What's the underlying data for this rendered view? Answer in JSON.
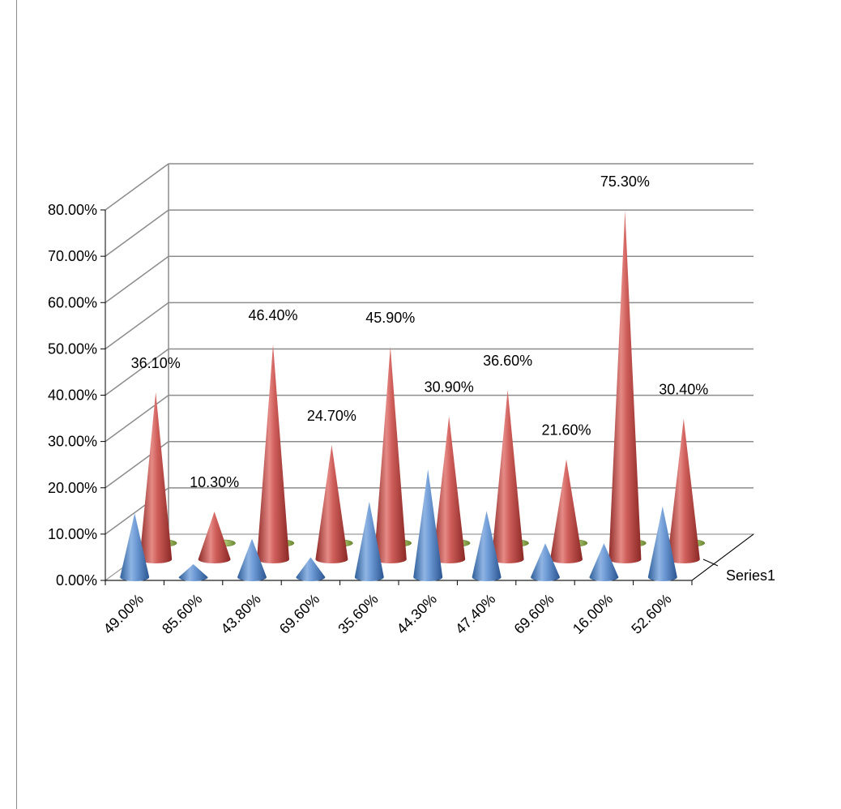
{
  "chart_data": {
    "type": "bar",
    "subtype": "3d-cone",
    "categories": [
      "49.00%",
      "85.60%",
      "43.80%",
      "69.60%",
      "35.60%",
      "44.30%",
      "47.40%",
      "69.60%",
      "16.00%",
      "52.60%"
    ],
    "y_tick_labels": [
      "0.00%",
      "10.00%",
      "20.00%",
      "30.00%",
      "40.00%",
      "50.00%",
      "60.00%",
      "70.00%",
      "80.00%"
    ],
    "ylim": [
      0,
      80
    ],
    "series": [
      {
        "name": "Series1",
        "color": "#4f81bd",
        "values": [
          14.5,
          3.5,
          9.0,
          5.0,
          17.0,
          24.0,
          15.0,
          8.0,
          8.0,
          16.0
        ],
        "data_labels": [
          "",
          "",
          "",
          "",
          "",
          "",
          "",
          "",
          "",
          ""
        ]
      },
      {
        "name": "",
        "color": "#c0504d",
        "values": [
          36.1,
          10.3,
          46.4,
          24.7,
          45.9,
          30.9,
          36.6,
          21.6,
          75.3,
          30.4
        ],
        "data_labels": [
          "36.10%",
          "10.30%",
          "46.40%",
          "24.70%",
          "45.90%",
          "30.90%",
          "36.60%",
          "21.60%",
          "75.30%",
          "30.40%"
        ]
      },
      {
        "name": "",
        "color": "#9bbb59",
        "values": [
          0,
          0,
          0,
          0,
          0,
          0,
          0,
          0,
          0,
          0
        ],
        "data_labels": [
          "",
          "",
          "",
          "",
          "",
          "",
          "",
          "",
          "",
          ""
        ]
      }
    ],
    "depth_axis_label": "Series1",
    "gridlines": true,
    "legend": "none"
  }
}
